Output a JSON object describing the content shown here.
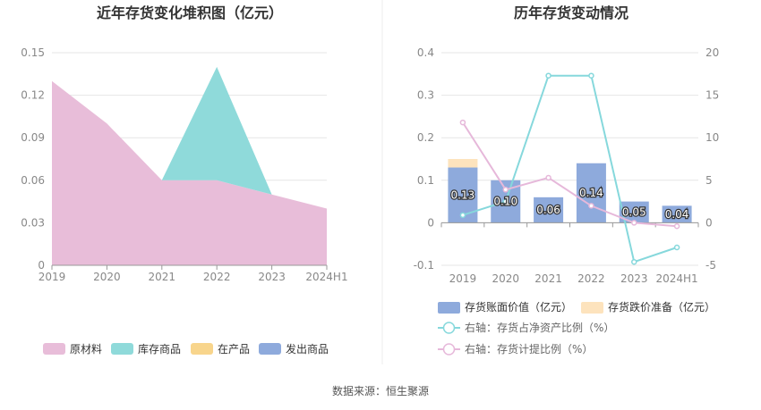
{
  "source_text": "数据来源：恒生聚源",
  "chart_data": [
    {
      "type": "area",
      "stacked": true,
      "title": "近年存货变化堆积图（亿元）",
      "categories": [
        "2019",
        "2020",
        "2021",
        "2022",
        "2023",
        "2024H1"
      ],
      "yticks": [
        "0",
        "0.03",
        "0.06",
        "0.09",
        "0.12",
        "0.15"
      ],
      "ylim": [
        0,
        0.15
      ],
      "series": [
        {
          "name": "原材料",
          "color": "#e8bdd9",
          "values": [
            0.13,
            0.1,
            0.06,
            0.06,
            0.05,
            0.04
          ]
        },
        {
          "name": "库存商品",
          "color": "#8fdada",
          "values": [
            0,
            0,
            0,
            0.08,
            0,
            0
          ]
        },
        {
          "name": "在产品",
          "color": "#f8d58c",
          "values": [
            0,
            0,
            0,
            0,
            0,
            0
          ]
        },
        {
          "name": "发出商品",
          "color": "#8eaadc",
          "values": [
            0,
            0,
            0,
            0,
            0,
            0
          ]
        }
      ],
      "legend_position": "bottom"
    },
    {
      "type": "bar+line",
      "title": "历年存货变动情况",
      "categories": [
        "2019",
        "2020",
        "2021",
        "2022",
        "2023",
        "2024H1"
      ],
      "left_yticks": [
        "-0.1",
        "0",
        "0.1",
        "0.2",
        "0.3",
        "0.4"
      ],
      "left_ylim": [
        -0.1,
        0.4
      ],
      "right_yticks": [
        "-5",
        "0",
        "5",
        "10",
        "15",
        "20"
      ],
      "right_ylim": [
        -5,
        20
      ],
      "bars": [
        {
          "name": "存货账面价值（亿元）",
          "color": "#8eaadc",
          "values": [
            0.13,
            0.1,
            0.06,
            0.14,
            0.05,
            0.04
          ],
          "labels": [
            "0.13",
            "0.10",
            "0.06",
            "0.14",
            "0.05",
            "0.04"
          ]
        },
        {
          "name": "存货跌价准备（亿元）",
          "color": "#fde3bd",
          "values": [
            0.02,
            0,
            0,
            0,
            0,
            0
          ]
        }
      ],
      "lines": [
        {
          "name": "右轴：存货占净资产比例（%）",
          "color": "#86d8dc",
          "values": [
            0.9,
            2.5,
            17.3,
            17.3,
            -4.6,
            -2.9
          ]
        },
        {
          "name": "右轴：存货计提比例（%）",
          "color": "#e6b8da",
          "values": [
            11.8,
            3.9,
            5.3,
            2.0,
            0,
            -0.4
          ]
        }
      ],
      "legend_position": "bottom"
    }
  ]
}
